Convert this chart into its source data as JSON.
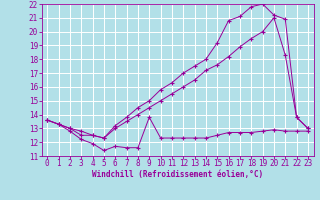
{
  "xlabel": "Windchill (Refroidissement éolien,°C)",
  "bg_color": "#b2e0e8",
  "grid_color": "#ffffff",
  "line_color": "#990099",
  "xlim": [
    -0.5,
    23.5
  ],
  "ylim": [
    11,
    22
  ],
  "xticks": [
    0,
    1,
    2,
    3,
    4,
    5,
    6,
    7,
    8,
    9,
    10,
    11,
    12,
    13,
    14,
    15,
    16,
    17,
    18,
    19,
    20,
    21,
    22,
    23
  ],
  "yticks": [
    11,
    12,
    13,
    14,
    15,
    16,
    17,
    18,
    19,
    20,
    21,
    22
  ],
  "line1_x": [
    0,
    1,
    2,
    3,
    4,
    5,
    6,
    7,
    8,
    9,
    10,
    11,
    12,
    13,
    14,
    15,
    16,
    17,
    18,
    19,
    20,
    21,
    22,
    23
  ],
  "line1_y": [
    13.6,
    13.3,
    12.8,
    12.2,
    11.9,
    11.4,
    11.7,
    11.6,
    11.6,
    13.8,
    12.3,
    12.3,
    12.3,
    12.3,
    12.3,
    12.5,
    12.7,
    12.7,
    12.7,
    12.8,
    12.9,
    12.8,
    12.8,
    12.8
  ],
  "line2_x": [
    0,
    1,
    2,
    3,
    4,
    5,
    6,
    7,
    8,
    9,
    10,
    11,
    12,
    13,
    14,
    15,
    16,
    17,
    18,
    19,
    20,
    21,
    22,
    23
  ],
  "line2_y": [
    13.6,
    13.3,
    13.0,
    12.5,
    12.5,
    12.3,
    13.0,
    13.5,
    14.0,
    14.5,
    15.0,
    15.5,
    16.0,
    16.5,
    17.2,
    17.6,
    18.2,
    18.9,
    19.5,
    20.0,
    21.0,
    18.3,
    13.8,
    13.0
  ],
  "line3_x": [
    0,
    1,
    2,
    3,
    4,
    5,
    6,
    7,
    8,
    9,
    10,
    11,
    12,
    13,
    14,
    15,
    16,
    17,
    18,
    19,
    20,
    21,
    22,
    23
  ],
  "line3_y": [
    13.6,
    13.3,
    13.0,
    12.8,
    12.5,
    12.3,
    13.2,
    13.8,
    14.5,
    15.0,
    15.8,
    16.3,
    17.0,
    17.5,
    18.0,
    19.2,
    20.8,
    21.1,
    21.8,
    22.0,
    21.2,
    20.9,
    13.8,
    13.0
  ],
  "xlabel_fontsize": 5.5,
  "tick_fontsize": 5.5
}
